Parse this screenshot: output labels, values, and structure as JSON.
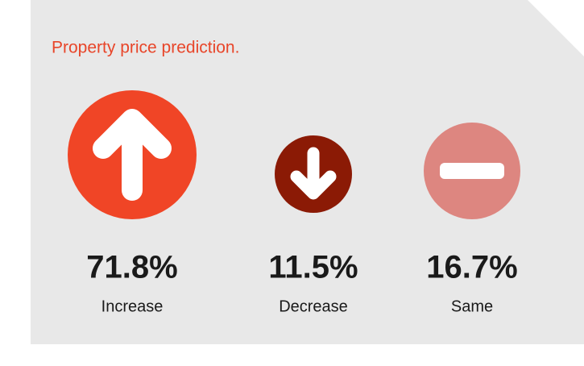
{
  "title": "Property price prediction.",
  "items": [
    {
      "value": "71.8%",
      "label": "Increase"
    },
    {
      "value": "11.5%",
      "label": "Decrease"
    },
    {
      "value": "16.7%",
      "label": "Same"
    }
  ]
}
